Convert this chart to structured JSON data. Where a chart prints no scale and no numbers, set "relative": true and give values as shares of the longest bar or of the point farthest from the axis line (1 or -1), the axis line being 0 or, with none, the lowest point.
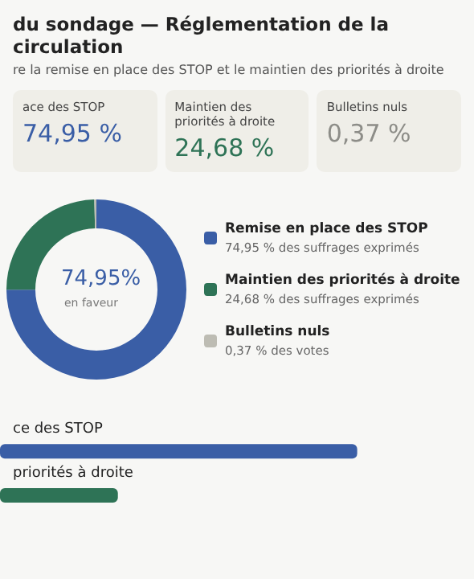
{
  "chart_data": [
    {
      "type": "other",
      "title": "du sondage — Réglementation de la circulation",
      "subtitle": "re la remise en place des STOP et le maintien des priorités à droite",
      "annotations": [
        "ace des STOP",
        "74,95 %",
        "Maintien des priorités à droite",
        "24,68 %",
        "Bulletins nuls",
        "0,37 %"
      ],
      "colors": [
        "#3a5ea6",
        "#2e7356",
        "#8d8d88"
      ]
    },
    {
      "type": "donut",
      "categories": [
        "Remise en place des STOP",
        "Maintien des priorités à droite",
        "Bulletins nuls"
      ],
      "values": [
        74.95,
        24.68,
        0.37
      ],
      "colors": [
        "#3a5ea6",
        "#2e7356",
        "#bdbcb3"
      ],
      "legend": "right",
      "annotations": [
        "74,95%",
        "en faveur",
        "74,95 % des suffrages exprimés",
        "24,68 % des suffrages exprimés",
        "0,37 % des votes"
      ]
    },
    {
      "type": "bar",
      "orientation": "horizontal",
      "relative": true,
      "categories": [
        "ce des STOP",
        "priorités à droite",
        null
      ],
      "values": [
        1,
        0.33,
        null
      ],
      "colors": [
        "#3a5ea6",
        "#2e7356",
        "#bdbcb3"
      ]
    }
  ]
}
